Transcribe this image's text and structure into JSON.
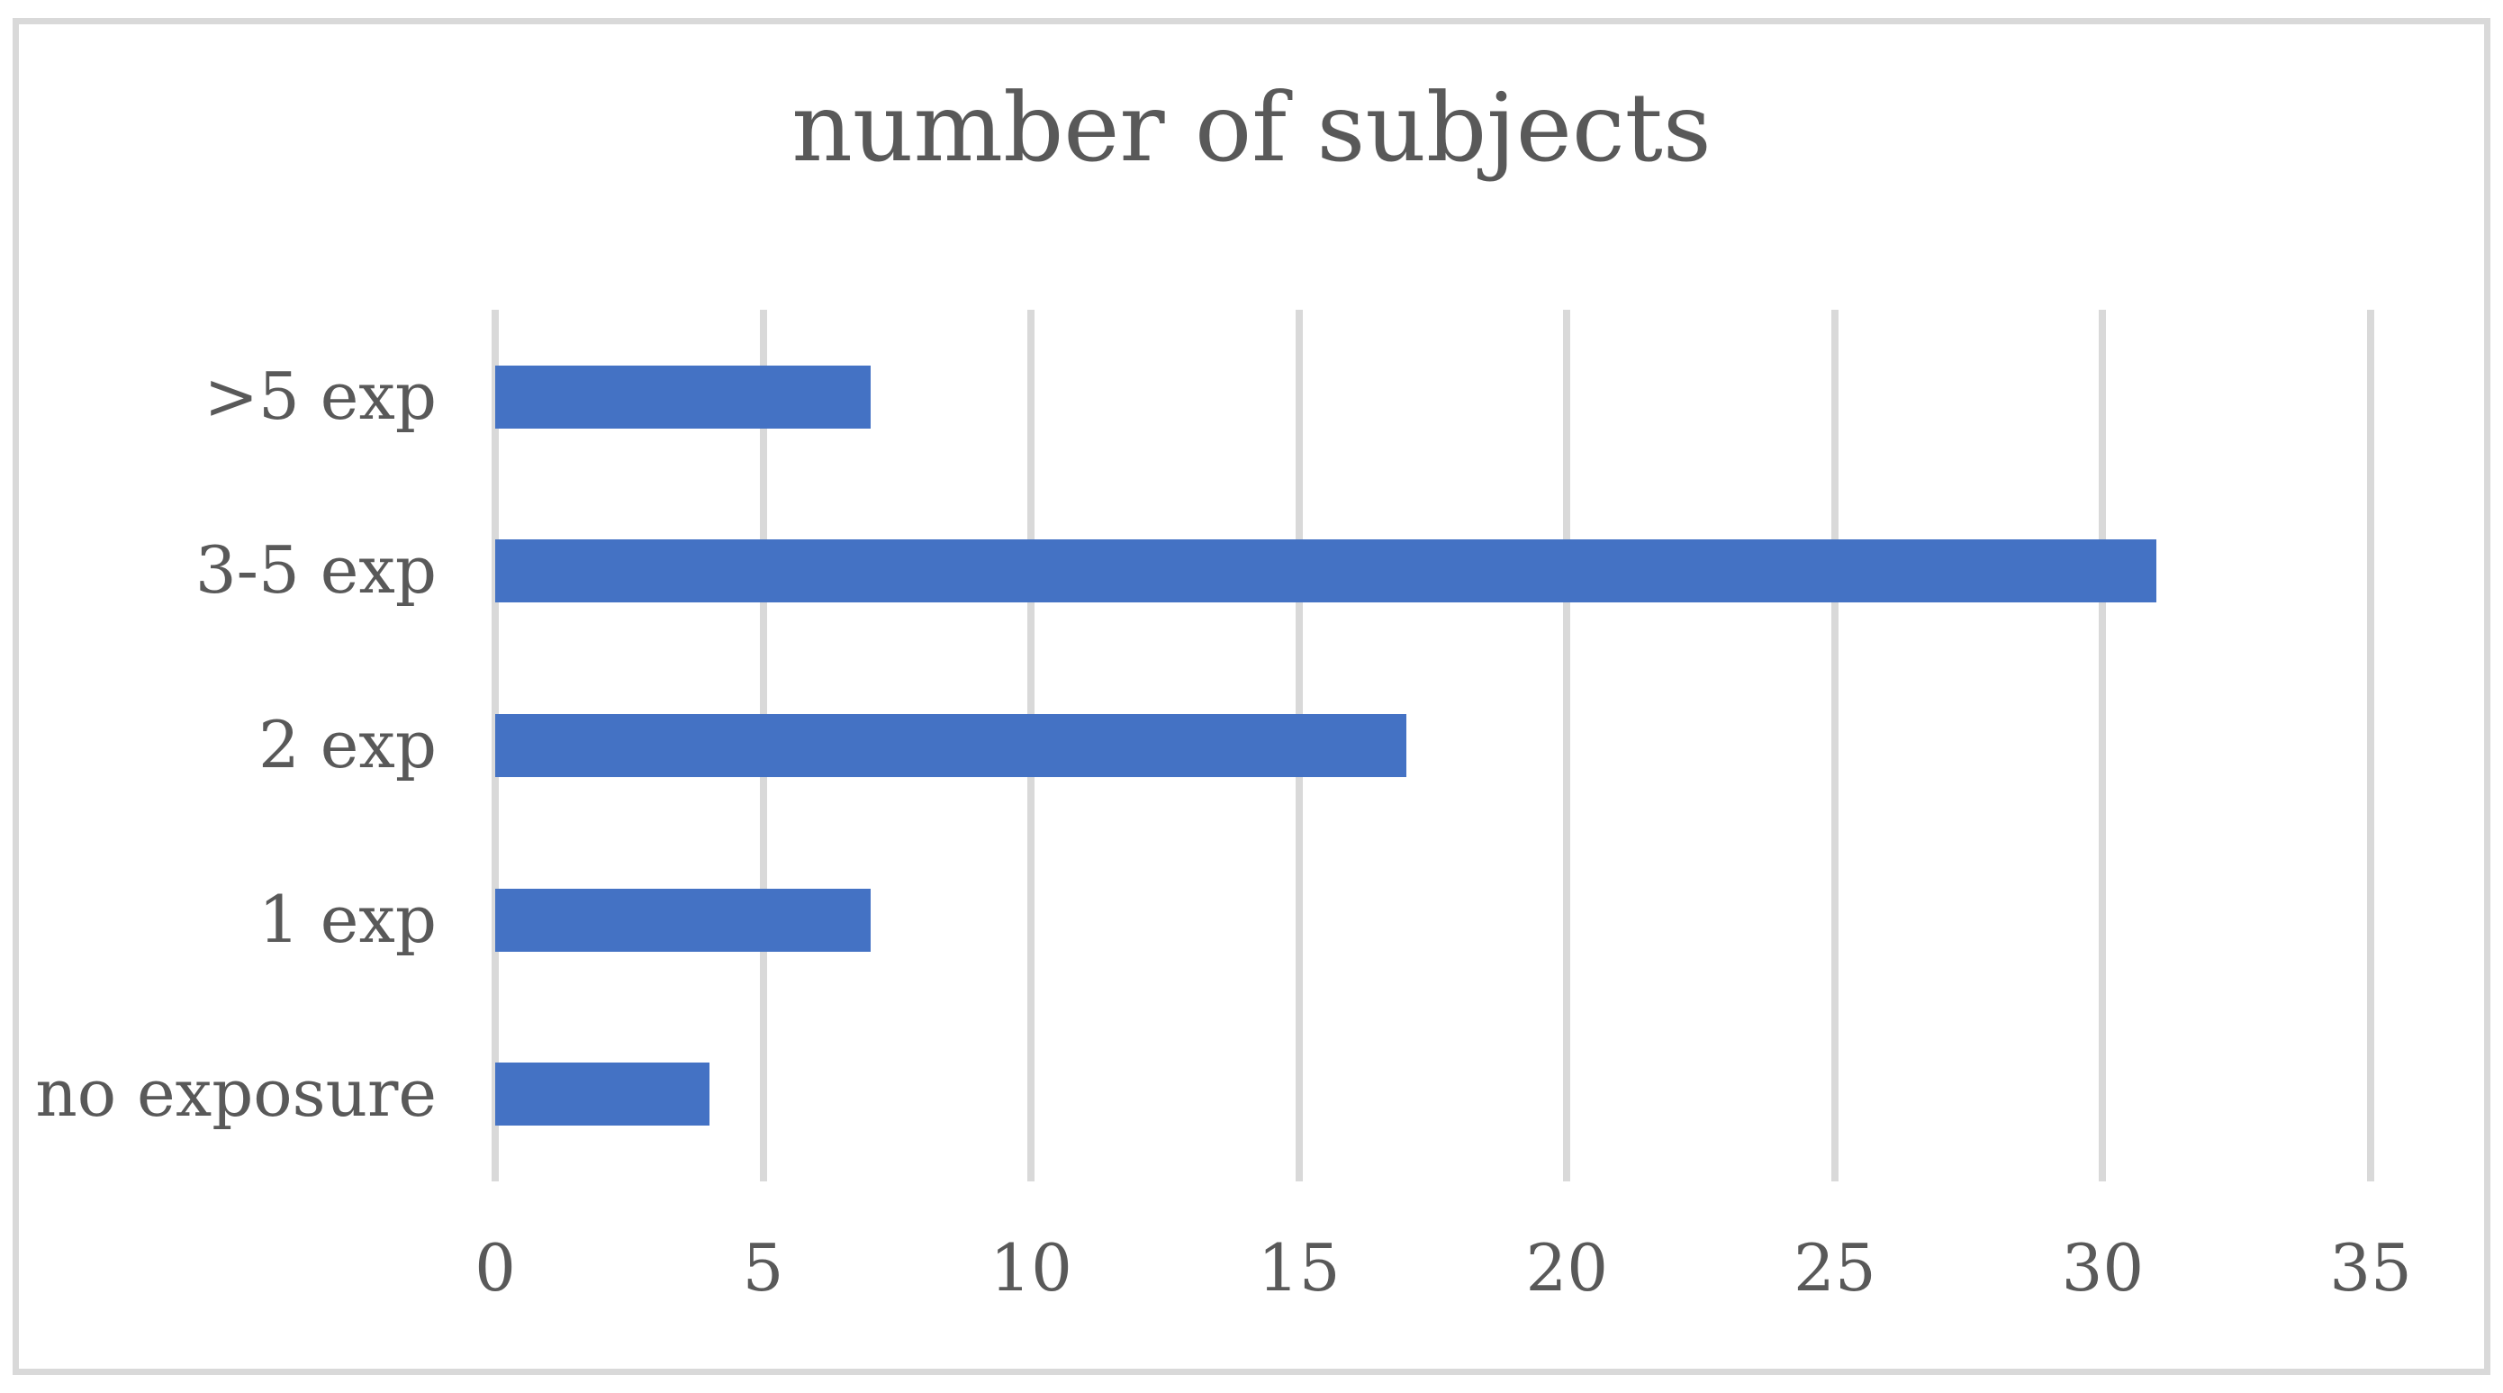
{
  "chart_data": {
    "type": "bar",
    "orientation": "horizontal",
    "title": "number of subjects",
    "categories": [
      ">5 exp",
      "3-5 exp",
      "2 exp",
      "1 exp",
      "no exposure"
    ],
    "values": [
      7,
      31,
      17,
      7,
      4
    ],
    "xlim": [
      0,
      35
    ],
    "xticks": [
      0,
      5,
      10,
      15,
      20,
      25,
      30,
      35
    ],
    "xlabel": "",
    "ylabel": "",
    "grid": "vertical-gridlines-on",
    "legend": "none",
    "colors": {
      "bar": "#4472C4",
      "gridline": "#D9D9D9",
      "frame_border": "#D9D9D9",
      "text": "#595959",
      "background": "#FFFFFF"
    }
  }
}
